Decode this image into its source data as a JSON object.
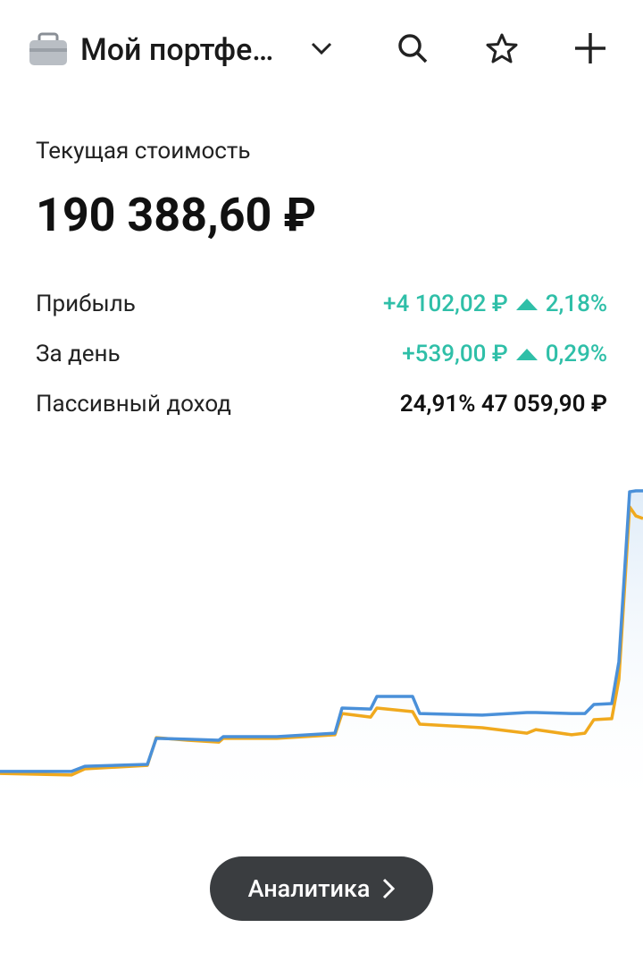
{
  "header": {
    "title": "Мой портфе…"
  },
  "summary": {
    "label": "Текущая стоимость",
    "value": "190 388,60 ₽"
  },
  "rows": [
    {
      "label": "Прибыль",
      "amount": "+4 102,02 ₽",
      "percent": "2,18%"
    },
    {
      "label": "За день",
      "amount": "+539,00 ₽",
      "percent": "0,29%"
    },
    {
      "label": "Пассивный доход",
      "percent": "24,91%",
      "amount": "47 059,90 ₽"
    }
  ],
  "chart_data": {
    "type": "line",
    "x": [
      0,
      80,
      95,
      165,
      175,
      210,
      245,
      250,
      310,
      375,
      383,
      415,
      422,
      462,
      470,
      540,
      590,
      600,
      640,
      655,
      665,
      685,
      693,
      705,
      712,
      720
    ],
    "xlim": [
      0,
      720
    ],
    "ylim": [
      0,
      100
    ],
    "series": [
      {
        "color": "#4a90d9",
        "values": [
          10.3,
          10.3,
          11.9,
          12.5,
          20.6,
          20.3,
          20,
          21.1,
          21.1,
          22.2,
          30,
          29.7,
          33.6,
          33.6,
          28.3,
          27.8,
          28.6,
          28.6,
          28.3,
          28.3,
          31.1,
          31.4,
          44.4,
          97.2,
          97.5,
          97.5
        ]
      },
      {
        "color": "#f0a91e",
        "values": [
          9.7,
          9.2,
          11.1,
          12.2,
          20.8,
          20,
          19.4,
          20.6,
          20.6,
          21.7,
          28.3,
          27.2,
          30,
          28.9,
          25,
          23.9,
          22.2,
          23.3,
          21.7,
          22.2,
          26.4,
          26.7,
          38.9,
          92.5,
          89.7,
          88.9
        ]
      }
    ]
  },
  "button": {
    "label": "Аналитика"
  }
}
